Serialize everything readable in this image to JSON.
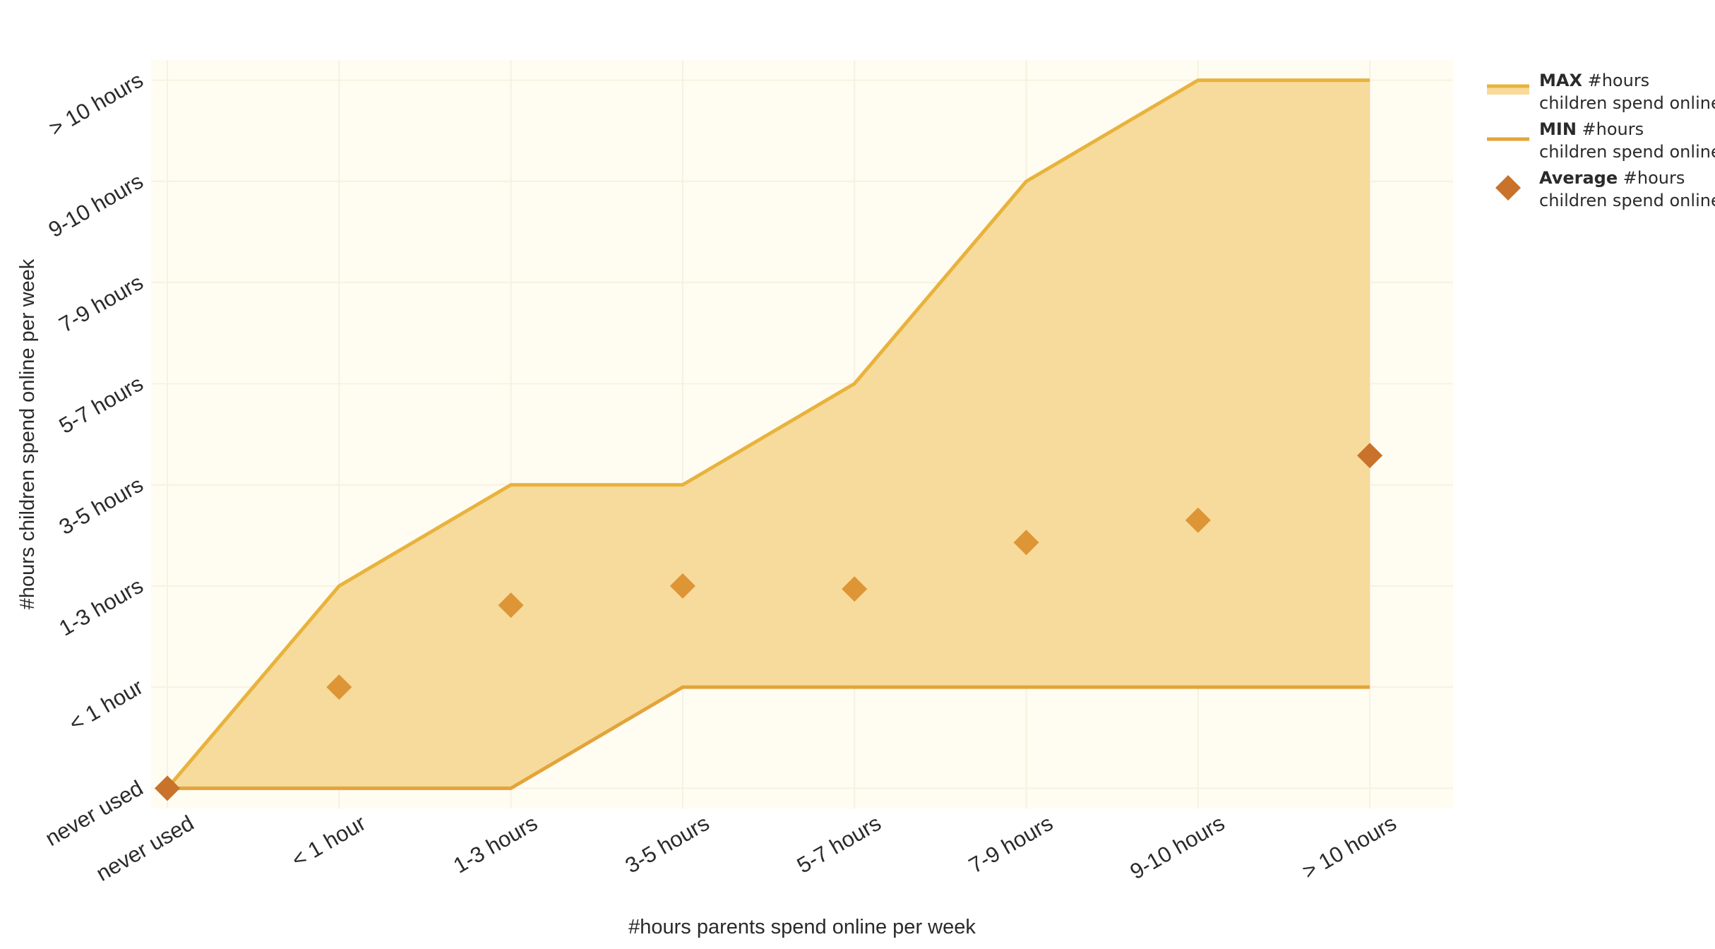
{
  "chart_data": {
    "type": "area",
    "title": "",
    "xlabel": "#hours parents spend online per week",
    "ylabel": "#hours children spend online per week",
    "categories": [
      "never used",
      "< 1 hour",
      "1-3 hours",
      "3-5 hours",
      "5-7 hours",
      "7-9 hours",
      "9-10 hours",
      "> 10 hours"
    ],
    "y_categories": [
      "never used",
      "< 1 hour",
      "1-3 hours",
      "3-5 hours",
      "5-7 hours",
      "7-9 hours",
      "9-10 hours",
      "> 10 hours"
    ],
    "ylim": [
      -0.2,
      7.2
    ],
    "grid": true,
    "legend_position": "top-right",
    "series": [
      {
        "key": "max",
        "legend_bold": "MAX",
        "legend_rest": " #hours",
        "legend_line2": "children spend online",
        "kind": "line-fill",
        "values": [
          0,
          2,
          3,
          3,
          4,
          6,
          7,
          7
        ],
        "color": "#E8B33C",
        "fill": "#F7DB9C"
      },
      {
        "key": "min",
        "legend_bold": "MIN",
        "legend_rest": " #hours",
        "legend_line2": "children spend online",
        "kind": "line",
        "values": [
          0,
          0,
          0,
          1,
          1,
          1,
          1,
          1
        ],
        "color": "#E3A43A"
      },
      {
        "key": "avg",
        "legend_bold": "Average",
        "legend_rest": " #hours",
        "legend_line2": "children spend online",
        "kind": "markers",
        "values": [
          0,
          1,
          1.81,
          2.0,
          1.97,
          2.43,
          2.65,
          3.29
        ],
        "color": "#DE9535",
        "edge_color": "#C8722C"
      }
    ]
  },
  "colors": {
    "plot_background": "#FFFCF2",
    "grid": "#F7F1E0"
  }
}
